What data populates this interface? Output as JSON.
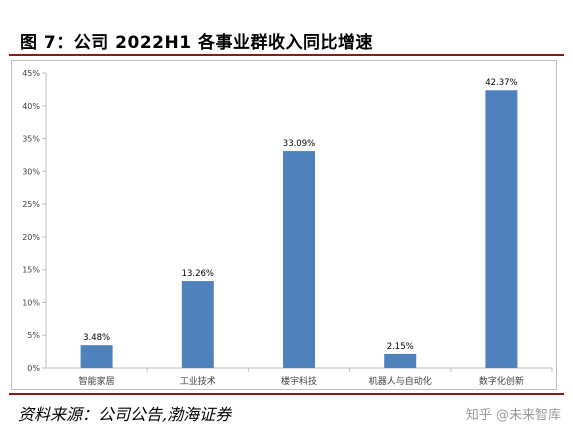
{
  "figure": {
    "title": "图 7：公司 2022H1 各事业群收入同比增速",
    "source": "资料来源：公司公告,渤海证券",
    "watermark": "知乎 @未来智库"
  },
  "colors": {
    "bar": "#4f81bd",
    "rule": "#8b1a1a",
    "axis": "#bfbfbf",
    "text": "#404040"
  },
  "chart_data": {
    "type": "bar",
    "categories": [
      "智能家居",
      "工业技术",
      "楼宇科技",
      "机器人与自动化",
      "数字化创新"
    ],
    "values": [
      3.48,
      13.26,
      33.09,
      2.15,
      42.37
    ],
    "data_labels": [
      "3.48%",
      "13.26%",
      "33.09%",
      "2.15%",
      "42.37%"
    ],
    "y_ticks": [
      0,
      5,
      10,
      15,
      20,
      25,
      30,
      35,
      40,
      45
    ],
    "y_tick_labels": [
      "0%",
      "5%",
      "10%",
      "15%",
      "20%",
      "25%",
      "30%",
      "35%",
      "40%",
      "45%"
    ],
    "ylim": [
      0,
      45
    ],
    "title": "",
    "xlabel": "",
    "ylabel": "",
    "grid": false,
    "legend": "none"
  }
}
